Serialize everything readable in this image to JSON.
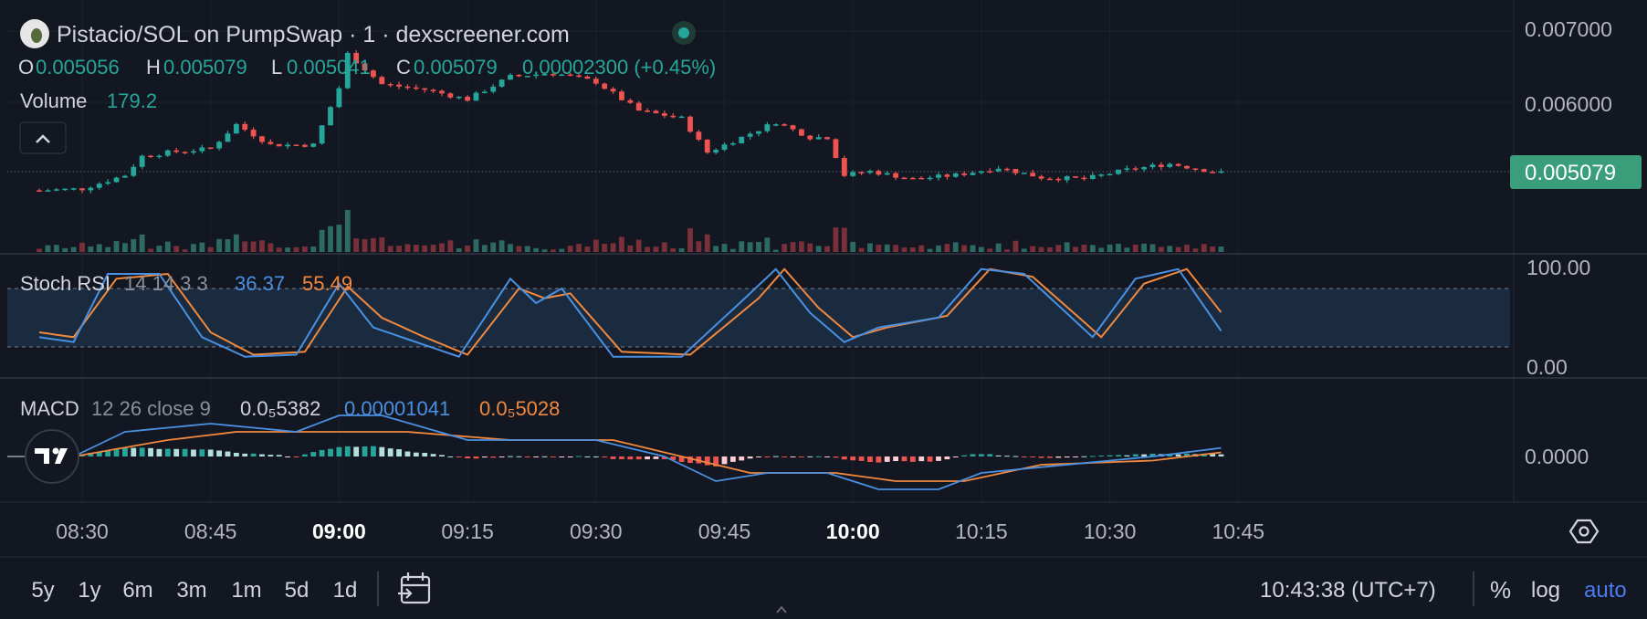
{
  "header": {
    "title": "Pistacio/SOL on PumpSwap · 1 · dexscreener.com",
    "ohlc": {
      "o_label": "O",
      "o_value": "0.005056",
      "h_label": "H",
      "h_value": "0.005079",
      "l_label": "L",
      "l_value": "0.005041",
      "c_label": "C",
      "c_value": "0.005079",
      "change": "0.00002300 (+0.45%)"
    },
    "volume_label": "Volume",
    "volume_value": "179.2",
    "collapse_icon": "chevron-up-icon"
  },
  "price_axis": {
    "ticks": [
      "0.007000",
      "0.006000"
    ],
    "last_price": "0.005079"
  },
  "stoch_rsi": {
    "label": "Stoch RSI",
    "params": "14 14 3 3",
    "k_value": "36.37",
    "d_value": "55.49",
    "axis_ticks": [
      "100.00",
      "0.00"
    ]
  },
  "macd": {
    "label": "MACD",
    "params": "12 26 close 9",
    "hist_value": "0.0₅5382",
    "macd_value": "0.00001041",
    "signal_value": "0.0₅5028",
    "axis_tick": "0.0000"
  },
  "time_axis": {
    "labels": [
      "08:30",
      "08:45",
      "09:00",
      "09:15",
      "09:30",
      "09:45",
      "10:00",
      "10:15",
      "10:30",
      "10:45"
    ],
    "bold": [
      "09:00",
      "10:00"
    ]
  },
  "toolbar": {
    "ranges": [
      "5y",
      "1y",
      "6m",
      "3m",
      "1m",
      "5d",
      "1d"
    ],
    "calendar_icon": "calendar-goto-icon",
    "clock": "10:43:38 (UTC+7)",
    "percent": "%",
    "log": "log",
    "auto": "auto",
    "settings_icon": "settings-hexagon-icon"
  },
  "colors": {
    "background": "#131722",
    "up": "#26a69a",
    "up_dim": "#2d6b62",
    "down": "#ef5350",
    "down_dim": "#7a3038",
    "blue_line": "#4a90e2",
    "orange_line": "#f0883e",
    "last_price_bg": "#3a9e7b",
    "text": "#d1d4dc",
    "muted": "#8b8f9a",
    "auto_active": "#4a7cf0"
  },
  "chart_data": {
    "type": "candlestick",
    "time_range": [
      "08:25",
      "10:43"
    ],
    "interval": "1m",
    "price_ylim": [
      0.0048,
      0.0072
    ],
    "price_keypoints": [
      {
        "t": "08:25",
        "close": 0.00485
      },
      {
        "t": "08:30",
        "close": 0.00487
      },
      {
        "t": "08:35",
        "close": 0.00505
      },
      {
        "t": "08:37",
        "close": 0.0053
      },
      {
        "t": "08:40",
        "close": 0.00535
      },
      {
        "t": "08:45",
        "close": 0.0054
      },
      {
        "t": "08:48",
        "close": 0.00572
      },
      {
        "t": "08:52",
        "close": 0.00545
      },
      {
        "t": "08:57",
        "close": 0.00545
      },
      {
        "t": "09:00",
        "close": 0.0062
      },
      {
        "t": "09:01",
        "close": 0.00665
      },
      {
        "t": "09:05",
        "close": 0.00625
      },
      {
        "t": "09:10",
        "close": 0.00618
      },
      {
        "t": "09:15",
        "close": 0.00605
      },
      {
        "t": "09:20",
        "close": 0.00635
      },
      {
        "t": "09:25",
        "close": 0.0064
      },
      {
        "t": "09:30",
        "close": 0.00628
      },
      {
        "t": "09:35",
        "close": 0.0059
      },
      {
        "t": "09:40",
        "close": 0.0058
      },
      {
        "t": "09:43",
        "close": 0.00535
      },
      {
        "t": "09:47",
        "close": 0.00555
      },
      {
        "t": "09:51",
        "close": 0.00575
      },
      {
        "t": "09:55",
        "close": 0.00555
      },
      {
        "t": "09:57",
        "close": 0.00555
      },
      {
        "t": "09:59",
        "close": 0.00505
      },
      {
        "t": "10:02",
        "close": 0.0051
      },
      {
        "t": "10:07",
        "close": 0.005
      },
      {
        "t": "10:12",
        "close": 0.00505
      },
      {
        "t": "10:17",
        "close": 0.00515
      },
      {
        "t": "10:22",
        "close": 0.00502
      },
      {
        "t": "10:27",
        "close": 0.005
      },
      {
        "t": "10:32",
        "close": 0.00512
      },
      {
        "t": "10:37",
        "close": 0.0052
      },
      {
        "t": "10:43",
        "close": 0.005079
      }
    ],
    "stoch_rsi_ylim": [
      0,
      100
    ],
    "stoch_rsi_bands": [
      20,
      80
    ],
    "stoch_k_keypoints": [
      {
        "t": "08:25",
        "v": 30
      },
      {
        "t": "08:29",
        "v": 25
      },
      {
        "t": "08:33",
        "v": 95
      },
      {
        "t": "08:39",
        "v": 95
      },
      {
        "t": "08:44",
        "v": 30
      },
      {
        "t": "08:49",
        "v": 10
      },
      {
        "t": "08:55",
        "v": 12
      },
      {
        "t": "09:00",
        "v": 85
      },
      {
        "t": "09:04",
        "v": 40
      },
      {
        "t": "09:09",
        "v": 25
      },
      {
        "t": "09:14",
        "v": 10
      },
      {
        "t": "09:20",
        "v": 90
      },
      {
        "t": "09:23",
        "v": 65
      },
      {
        "t": "09:26",
        "v": 80
      },
      {
        "t": "09:32",
        "v": 10
      },
      {
        "t": "09:40",
        "v": 10
      },
      {
        "t": "09:48",
        "v": 75
      },
      {
        "t": "09:51",
        "v": 100
      },
      {
        "t": "09:55",
        "v": 55
      },
      {
        "t": "09:59",
        "v": 25
      },
      {
        "t": "10:03",
        "v": 40
      },
      {
        "t": "10:10",
        "v": 50
      },
      {
        "t": "10:15",
        "v": 100
      },
      {
        "t": "10:20",
        "v": 95
      },
      {
        "t": "10:28",
        "v": 30
      },
      {
        "t": "10:33",
        "v": 90
      },
      {
        "t": "10:38",
        "v": 100
      },
      {
        "t": "10:43",
        "v": 36.37
      }
    ],
    "stoch_d_keypoints": [
      {
        "t": "08:25",
        "v": 35
      },
      {
        "t": "08:29",
        "v": 30
      },
      {
        "t": "08:34",
        "v": 90
      },
      {
        "t": "08:40",
        "v": 95
      },
      {
        "t": "08:45",
        "v": 35
      },
      {
        "t": "08:50",
        "v": 12
      },
      {
        "t": "08:56",
        "v": 15
      },
      {
        "t": "09:01",
        "v": 82
      },
      {
        "t": "09:05",
        "v": 50
      },
      {
        "t": "09:10",
        "v": 30
      },
      {
        "t": "09:15",
        "v": 12
      },
      {
        "t": "09:21",
        "v": 80
      },
      {
        "t": "09:24",
        "v": 70
      },
      {
        "t": "09:27",
        "v": 75
      },
      {
        "t": "09:33",
        "v": 15
      },
      {
        "t": "09:41",
        "v": 12
      },
      {
        "t": "09:49",
        "v": 70
      },
      {
        "t": "09:52",
        "v": 100
      },
      {
        "t": "09:56",
        "v": 60
      },
      {
        "t": "10:00",
        "v": 30
      },
      {
        "t": "10:04",
        "v": 40
      },
      {
        "t": "10:11",
        "v": 52
      },
      {
        "t": "10:16",
        "v": 100
      },
      {
        "t": "10:21",
        "v": 92
      },
      {
        "t": "10:29",
        "v": 30
      },
      {
        "t": "10:34",
        "v": 85
      },
      {
        "t": "10:39",
        "v": 100
      },
      {
        "t": "10:43",
        "v": 55.49
      }
    ],
    "macd_line_keypoints": [
      {
        "t": "08:29",
        "v": 0
      },
      {
        "t": "08:35",
        "v": 3e-05
      },
      {
        "t": "08:45",
        "v": 4e-05
      },
      {
        "t": "08:55",
        "v": 3e-05
      },
      {
        "t": "09:00",
        "v": 5e-05
      },
      {
        "t": "09:05",
        "v": 5e-05
      },
      {
        "t": "09:15",
        "v": 2e-05
      },
      {
        "t": "09:30",
        "v": 2e-05
      },
      {
        "t": "09:38",
        "v": 0.0
      },
      {
        "t": "09:44",
        "v": -3e-05
      },
      {
        "t": "09:50",
        "v": -2e-05
      },
      {
        "t": "09:57",
        "v": -2e-05
      },
      {
        "t": "10:03",
        "v": -4e-05
      },
      {
        "t": "10:10",
        "v": -4e-05
      },
      {
        "t": "10:15",
        "v": -2e-05
      },
      {
        "t": "10:25",
        "v": -1e-05
      },
      {
        "t": "10:35",
        "v": 0.0
      },
      {
        "t": "10:43",
        "v": 1.041e-05
      }
    ],
    "macd_signal_keypoints": [
      {
        "t": "08:29",
        "v": 0
      },
      {
        "t": "08:40",
        "v": 2e-05
      },
      {
        "t": "08:48",
        "v": 3e-05
      },
      {
        "t": "08:58",
        "v": 3e-05
      },
      {
        "t": "09:08",
        "v": 3e-05
      },
      {
        "t": "09:20",
        "v": 2e-05
      },
      {
        "t": "09:32",
        "v": 2e-05
      },
      {
        "t": "09:40",
        "v": 0.0
      },
      {
        "t": "09:48",
        "v": -2e-05
      },
      {
        "t": "09:58",
        "v": -2e-05
      },
      {
        "t": "10:05",
        "v": -3e-05
      },
      {
        "t": "10:13",
        "v": -3e-05
      },
      {
        "t": "10:22",
        "v": -1e-05
      },
      {
        "t": "10:35",
        "v": -5e-06
      },
      {
        "t": "10:43",
        "v": 5.028e-06
      }
    ]
  }
}
